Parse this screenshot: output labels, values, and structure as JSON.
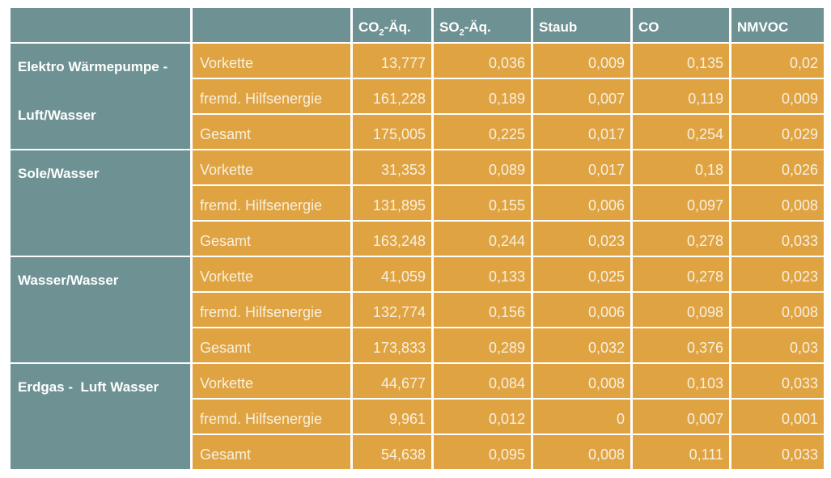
{
  "colors": {
    "teal": "#6E9293",
    "orange": "#E0A342",
    "grid": "#FFFFFF",
    "text_white": "#FFFFFF",
    "text_cream": "#F7F0DF"
  },
  "chart_data": {
    "type": "table",
    "title": "",
    "decimal_style": "comma",
    "columns": [
      {
        "key": "category",
        "parts": []
      },
      {
        "key": "component",
        "parts": []
      },
      {
        "key": "co2_aeq",
        "parts": [
          {
            "t": "CO"
          },
          {
            "t": "2",
            "sub": true
          },
          {
            "t": "-Äq."
          }
        ]
      },
      {
        "key": "so2_aeq",
        "parts": [
          {
            "t": "SO"
          },
          {
            "t": "2",
            "sub": true
          },
          {
            "t": "-Äq."
          }
        ]
      },
      {
        "key": "staub",
        "parts": [
          {
            "t": "Staub"
          }
        ]
      },
      {
        "key": "co",
        "parts": [
          {
            "t": "CO"
          }
        ]
      },
      {
        "key": "nmvoc",
        "parts": [
          {
            "t": "NMVOC"
          }
        ]
      }
    ],
    "groups": [
      {
        "label": "Elektro Wärmepumpe -\n\nLuft/Wasser",
        "rows": [
          {
            "label": "Vorkette",
            "values": [
              "13,777",
              "0,036",
              "0,009",
              "0,135",
              "0,02"
            ]
          },
          {
            "label": "fremd. Hilfsenergie",
            "values": [
              "161,228",
              "0,189",
              "0,007",
              "0,119",
              "0,009"
            ]
          },
          {
            "label": "Gesamt",
            "values": [
              "175,005",
              "0,225",
              "0,017",
              "0,254",
              "0,029"
            ]
          }
        ]
      },
      {
        "label": "Sole/Wasser",
        "rows": [
          {
            "label": "Vorkette",
            "values": [
              "31,353",
              "0,089",
              "0,017",
              "0,18",
              "0,026"
            ]
          },
          {
            "label": "fremd. Hilfsenergie",
            "values": [
              "131,895",
              "0,155",
              "0,006",
              "0,097",
              "0,008"
            ]
          },
          {
            "label": "Gesamt",
            "values": [
              "163,248",
              "0,244",
              "0,023",
              "0,278",
              "0,033"
            ]
          }
        ]
      },
      {
        "label": "Wasser/Wasser",
        "rows": [
          {
            "label": "Vorkette",
            "values": [
              "41,059",
              "0,133",
              "0,025",
              "0,278",
              "0,023"
            ]
          },
          {
            "label": "fremd. Hilfsenergie",
            "values": [
              "132,774",
              "0,156",
              "0,006",
              "0,098",
              "0,008"
            ]
          },
          {
            "label": "Gesamt",
            "values": [
              "173,833",
              "0,289",
              "0,032",
              "0,376",
              "0,03"
            ]
          }
        ]
      },
      {
        "label": "Erdgas -  Luft Wasser",
        "rows": [
          {
            "label": "Vorkette",
            "values": [
              "44,677",
              "0,084",
              "0,008",
              "0,103",
              "0,033"
            ]
          },
          {
            "label": "fremd. Hilfsenergie",
            "values": [
              "9,961",
              "0,012",
              "0",
              "0,007",
              "0,001"
            ]
          },
          {
            "label": "Gesamt",
            "values": [
              "54,638",
              "0,095",
              "0,008",
              "0,111",
              "0,033"
            ]
          }
        ]
      }
    ]
  }
}
